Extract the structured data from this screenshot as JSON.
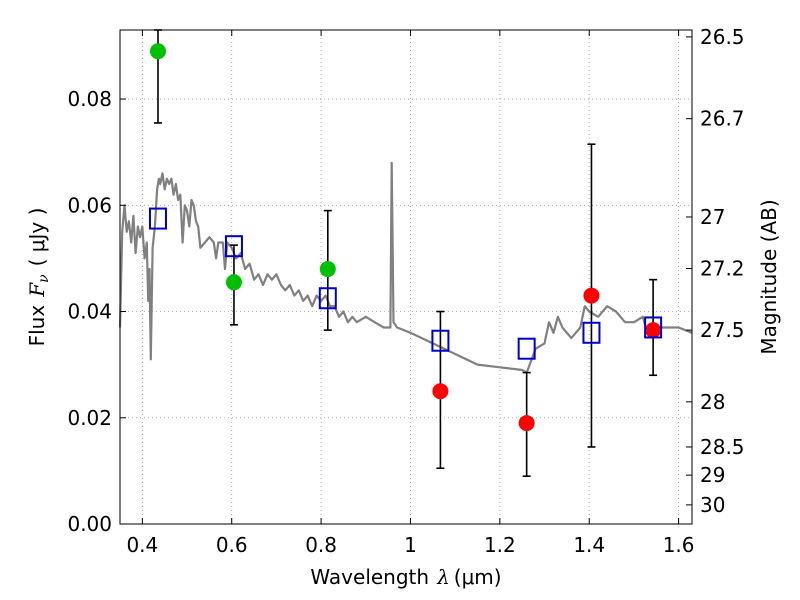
{
  "chart_data": {
    "type": "scatter",
    "xlabel": "Wavelength",
    "xlabel_symbol": "λ",
    "xlabel_unit": "(μm)",
    "ylabel": "Flux",
    "ylabel_symbol": "F",
    "ylabel_subscript": "ν",
    "ylabel_unit": "( μJy )",
    "y2label": "Magnitude (AB)",
    "xlim": [
      0.35,
      1.63
    ],
    "ylim": [
      0.0,
      0.093
    ],
    "grid": true,
    "x_ticks": [
      0.4,
      0.6,
      0.8,
      1.0,
      1.2,
      1.4,
      1.6
    ],
    "x_tick_labels": [
      "0.4",
      "0.6",
      "0.8",
      "1",
      "1.2",
      "1.4",
      "1.6"
    ],
    "y_ticks": [
      0.0,
      0.02,
      0.04,
      0.06,
      0.08
    ],
    "y_tick_labels": [
      "0.00",
      "0.02",
      "0.04",
      "0.06",
      "0.08"
    ],
    "y2_ticks": [
      {
        "label": "26.5",
        "flux": 0.0917
      },
      {
        "label": "26.7",
        "flux": 0.0763
      },
      {
        "label": "27",
        "flux": 0.0578
      },
      {
        "label": "27.2",
        "flux": 0.0481
      },
      {
        "label": "27.5",
        "flux": 0.0365
      },
      {
        "label": "28",
        "flux": 0.023
      },
      {
        "label": "28.5",
        "flux": 0.0145
      },
      {
        "label": "29",
        "flux": 0.0092
      },
      {
        "label": "30",
        "flux": 0.0036
      }
    ],
    "colors": {
      "model": "#808080",
      "green": "#00bf00",
      "red": "#ff0000",
      "box": "#0000cc",
      "errorbar": "#000000",
      "grid": "#999999"
    },
    "series": [
      {
        "kind": "model_spectrum",
        "points": [
          [
            0.35,
            0.037
          ],
          [
            0.355,
            0.055
          ],
          [
            0.36,
            0.06
          ],
          [
            0.365,
            0.055
          ],
          [
            0.37,
            0.057
          ],
          [
            0.375,
            0.053
          ],
          [
            0.38,
            0.058
          ],
          [
            0.385,
            0.051
          ],
          [
            0.39,
            0.056
          ],
          [
            0.395,
            0.054
          ],
          [
            0.4,
            0.056
          ],
          [
            0.405,
            0.05
          ],
          [
            0.41,
            0.053
          ],
          [
            0.413,
            0.042
          ],
          [
            0.416,
            0.048
          ],
          [
            0.419,
            0.031
          ],
          [
            0.423,
            0.052
          ],
          [
            0.428,
            0.056
          ],
          [
            0.433,
            0.063
          ],
          [
            0.437,
            0.065
          ],
          [
            0.44,
            0.064
          ],
          [
            0.445,
            0.066
          ],
          [
            0.45,
            0.063
          ],
          [
            0.455,
            0.065
          ],
          [
            0.46,
            0.064
          ],
          [
            0.465,
            0.065
          ],
          [
            0.47,
            0.062
          ],
          [
            0.475,
            0.064
          ],
          [
            0.48,
            0.061
          ],
          [
            0.485,
            0.062
          ],
          [
            0.49,
            0.053
          ],
          [
            0.495,
            0.06
          ],
          [
            0.5,
            0.059
          ],
          [
            0.505,
            0.056
          ],
          [
            0.51,
            0.061
          ],
          [
            0.515,
            0.06
          ],
          [
            0.52,
            0.057
          ],
          [
            0.525,
            0.056
          ],
          [
            0.53,
            0.052
          ],
          [
            0.54,
            0.053
          ],
          [
            0.55,
            0.054
          ],
          [
            0.56,
            0.053
          ],
          [
            0.565,
            0.05
          ],
          [
            0.57,
            0.053
          ],
          [
            0.58,
            0.053
          ],
          [
            0.585,
            0.048
          ],
          [
            0.59,
            0.053
          ],
          [
            0.6,
            0.052
          ],
          [
            0.61,
            0.05
          ],
          [
            0.62,
            0.051
          ],
          [
            0.63,
            0.048
          ],
          [
            0.64,
            0.049
          ],
          [
            0.65,
            0.046
          ],
          [
            0.66,
            0.047
          ],
          [
            0.67,
            0.045
          ],
          [
            0.68,
            0.047
          ],
          [
            0.69,
            0.046
          ],
          [
            0.7,
            0.047
          ],
          [
            0.71,
            0.045
          ],
          [
            0.72,
            0.044
          ],
          [
            0.73,
            0.045
          ],
          [
            0.74,
            0.043
          ],
          [
            0.75,
            0.044
          ],
          [
            0.76,
            0.042
          ],
          [
            0.77,
            0.043
          ],
          [
            0.78,
            0.041
          ],
          [
            0.79,
            0.043
          ],
          [
            0.8,
            0.042
          ],
          [
            0.81,
            0.043
          ],
          [
            0.82,
            0.041
          ],
          [
            0.83,
            0.041
          ],
          [
            0.84,
            0.039
          ],
          [
            0.85,
            0.04
          ],
          [
            0.86,
            0.038
          ],
          [
            0.87,
            0.039
          ],
          [
            0.88,
            0.038
          ],
          [
            0.9,
            0.039
          ],
          [
            0.92,
            0.038
          ],
          [
            0.94,
            0.037
          ],
          [
            0.955,
            0.037
          ],
          [
            0.958,
            0.068
          ],
          [
            0.962,
            0.038
          ],
          [
            0.97,
            0.037
          ],
          [
            1.0,
            0.036
          ],
          [
            1.05,
            0.034
          ],
          [
            1.1,
            0.032
          ],
          [
            1.15,
            0.03
          ],
          [
            1.2,
            0.0295
          ],
          [
            1.25,
            0.029
          ],
          [
            1.26,
            0.0285
          ],
          [
            1.28,
            0.033
          ],
          [
            1.3,
            0.034
          ],
          [
            1.31,
            0.038
          ],
          [
            1.32,
            0.036
          ],
          [
            1.33,
            0.039
          ],
          [
            1.34,
            0.037
          ],
          [
            1.35,
            0.036
          ],
          [
            1.36,
            0.035
          ],
          [
            1.37,
            0.036
          ],
          [
            1.38,
            0.037
          ],
          [
            1.39,
            0.041
          ],
          [
            1.4,
            0.04
          ],
          [
            1.42,
            0.039
          ],
          [
            1.44,
            0.041
          ],
          [
            1.46,
            0.04
          ],
          [
            1.48,
            0.038
          ],
          [
            1.5,
            0.038
          ],
          [
            1.52,
            0.039
          ],
          [
            1.53,
            0.036
          ],
          [
            1.55,
            0.037
          ],
          [
            1.57,
            0.037
          ],
          [
            1.6,
            0.037
          ],
          [
            1.63,
            0.036
          ]
        ]
      },
      {
        "kind": "observed_detection",
        "x": [
          0.435,
          0.605,
          0.815
        ],
        "y": [
          0.089,
          0.0455,
          0.048
        ],
        "yerr_low": [
          0.0755,
          0.0375,
          0.0365
        ],
        "yerr_high": [
          0.093,
          0.0525,
          0.059
        ]
      },
      {
        "kind": "observed_upper",
        "x": [
          1.067,
          1.26,
          1.405,
          1.543
        ],
        "y": [
          0.025,
          0.019,
          0.043,
          0.0365
        ],
        "yerr_low": [
          0.0105,
          0.009,
          0.0145,
          0.028
        ],
        "yerr_high": [
          0.04,
          0.0285,
          0.0715,
          0.046
        ]
      },
      {
        "kind": "model_photometry",
        "x": [
          0.435,
          0.605,
          0.815,
          1.067,
          1.26,
          1.405,
          1.543
        ],
        "y": [
          0.0575,
          0.0523,
          0.0425,
          0.0345,
          0.033,
          0.036,
          0.037
        ]
      }
    ]
  }
}
